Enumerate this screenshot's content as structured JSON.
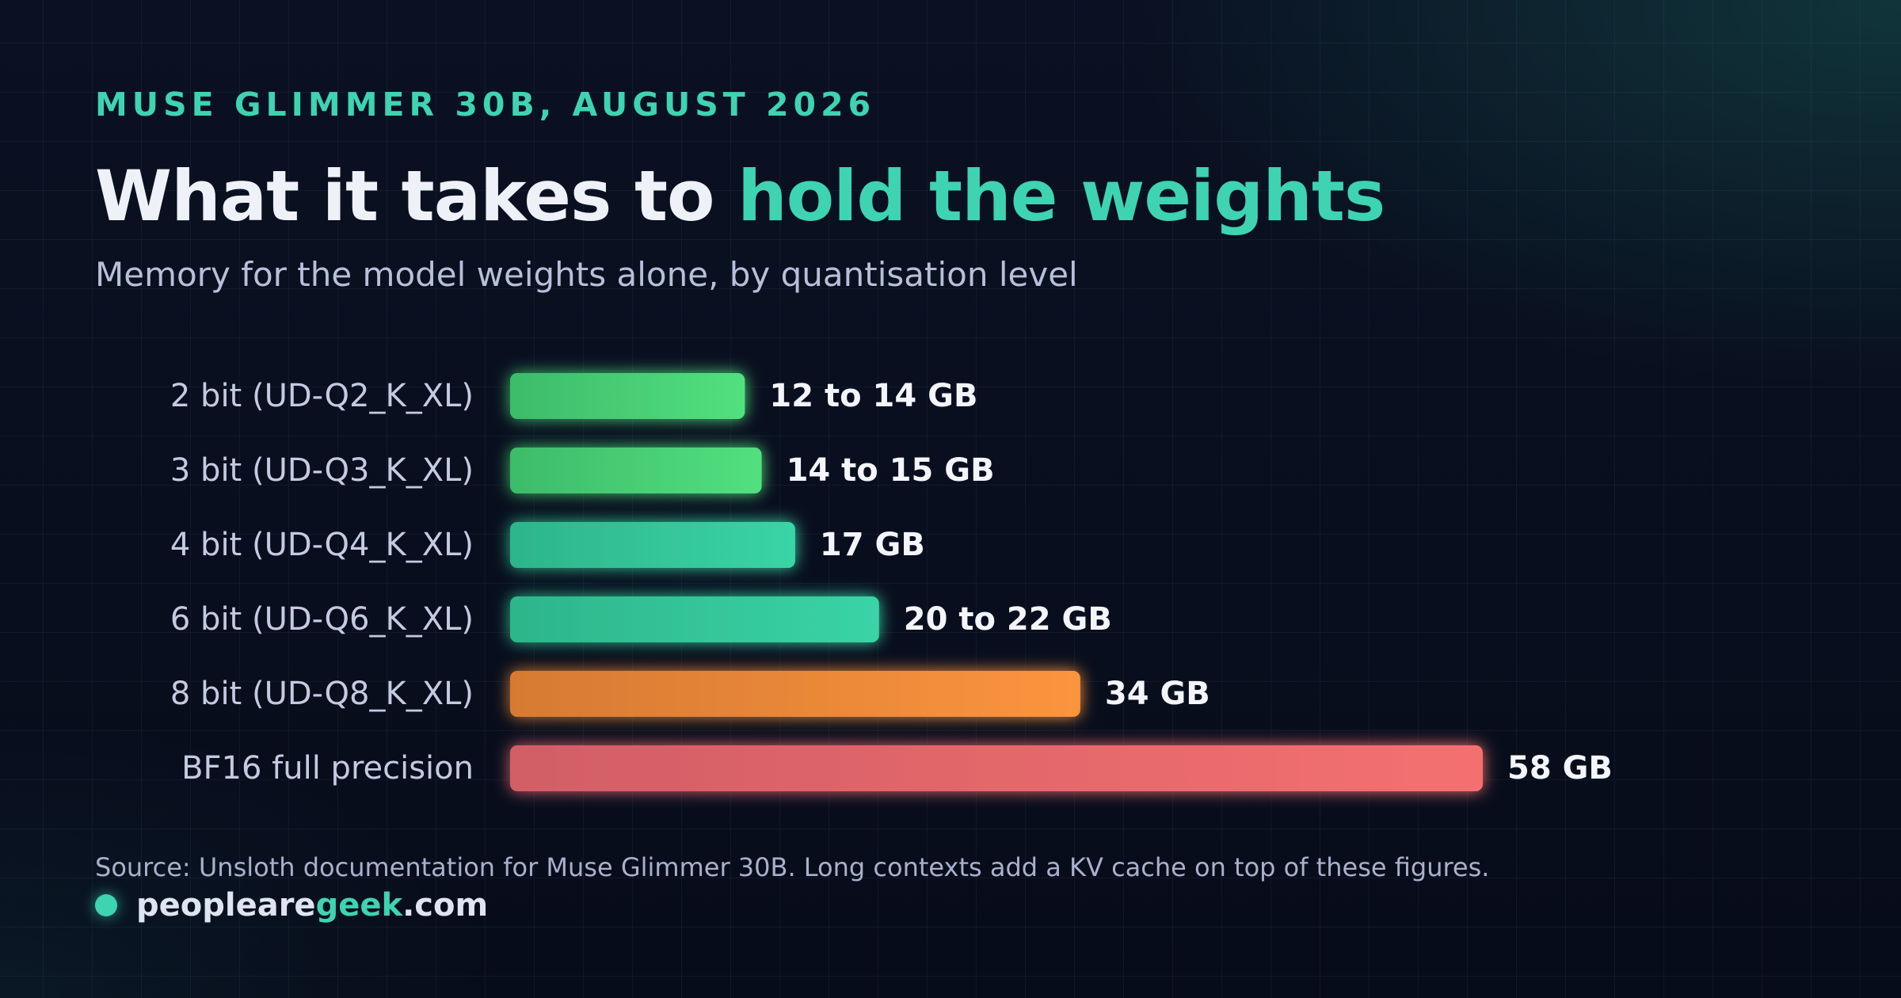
{
  "header": {
    "eyebrow": "MUSE GLIMMER 30B, AUGUST 2026",
    "title_plain": "What it takes to ",
    "title_accent": "hold the weights",
    "subtitle": "Memory for the model weights alone, by quantisation level"
  },
  "chart_data": {
    "type": "bar",
    "orientation": "horizontal",
    "title": "",
    "xlabel": "",
    "ylabel": "",
    "grid": false,
    "categories": [
      "2 bit (UD-Q2_K_XL)",
      "3 bit (UD-Q3_K_XL)",
      "4 bit (UD-Q4_K_XL)",
      "6 bit (UD-Q6_K_XL)",
      "8 bit (UD-Q8_K_XL)",
      "BF16 full precision"
    ],
    "values": [
      14,
      15,
      17,
      22,
      34,
      58
    ],
    "value_labels": [
      "12 to 14 GB",
      "14 to 15 GB",
      "17 GB",
      "20 to 22 GB",
      "34 GB",
      "58 GB"
    ],
    "unit": "GB",
    "xlim": [
      0,
      58
    ],
    "colors": [
      [
        "#3dbb6a",
        "#52e07f"
      ],
      [
        "#3dbb6a",
        "#52e07f"
      ],
      [
        "#2db58a",
        "#3ad4a6"
      ],
      [
        "#2db58a",
        "#3ad4a6"
      ],
      [
        "#d67a33",
        "#fb943e"
      ],
      [
        "#d15e66",
        "#f47070"
      ]
    ]
  },
  "footer": {
    "source": "Source: Unsloth documentation for Muse Glimmer 30B. Long contexts add a KV cache on top of these figures.",
    "brand_plain": "peopleare",
    "brand_accent": "geek",
    "brand_tail": ".com"
  }
}
